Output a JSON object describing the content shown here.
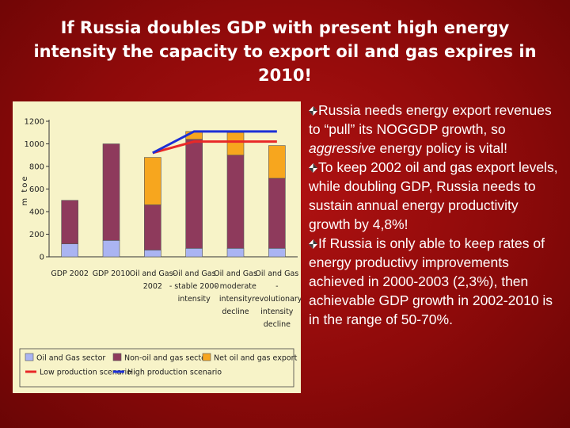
{
  "slide": {
    "title_lines": [
      "If Russia doubles GDP with present high energy",
      "intensity the capacity to export oil and gas expires in",
      "2010!"
    ]
  },
  "bullets": [
    {
      "text_before": "Russia needs energy export revenues to “pull” its NOGGDP growth, so ",
      "emphasis": "aggressive",
      "text_after": " energy policy is vital!"
    },
    {
      "text_before": "To keep 2002 oil and gas export levels, while doubling GDP, Russia needs to sustain annual energy productivity growth by 4,8%!",
      "emphasis": "",
      "text_after": ""
    },
    {
      "text_before": "If Russia is only able to keep rates of energy productivy improvements achieved in 2000-2003 (2,3%), then achievable GDP growth in 2002-2010 is in the range of 50-70%.",
      "emphasis": "",
      "text_after": ""
    }
  ],
  "icons": {
    "bullet": "diamond-arrow-icon"
  },
  "chart_data": {
    "type": "bar",
    "stacked": true,
    "ylabel": "m toe",
    "ylim": [
      0,
      1200
    ],
    "yticks": [
      0,
      200,
      400,
      600,
      800,
      1000,
      1200
    ],
    "categories": [
      [
        "GDP 2002"
      ],
      [
        "GDP 2010"
      ],
      [
        "Oil and Gas-",
        "2002"
      ],
      [
        "Oil and Gas",
        "- stable 2000",
        "intensity"
      ],
      [
        "Oil and Gas",
        "- moderate",
        "intensity",
        "decline"
      ],
      [
        "Oil and Gas",
        "-",
        "revolutionary",
        "intensity",
        "decline"
      ]
    ],
    "series": [
      {
        "name": "Oil and Gas sector",
        "color": "#aab4f2",
        "values": [
          115,
          145,
          60,
          75,
          75,
          75
        ]
      },
      {
        "name": "Non-oil and gas sector",
        "color": "#8e3a5c",
        "values": [
          385,
          855,
          400,
          965,
          825,
          620
        ]
      },
      {
        "name": "Net oil and gas export",
        "color": "#f7a61e",
        "values": [
          0,
          0,
          420,
          70,
          200,
          290
        ]
      }
    ],
    "lines": [
      {
        "name": "Low production scenario",
        "color": "#e82828",
        "from_category": 2,
        "values": [
          920,
          1020,
          1020,
          1020
        ]
      },
      {
        "name": "High production scenario",
        "color": "#1c2fd6",
        "from_category": 2,
        "values": [
          920,
          1110,
          1110,
          1110
        ]
      }
    ],
    "grid": false,
    "legend_position": "bottom"
  }
}
